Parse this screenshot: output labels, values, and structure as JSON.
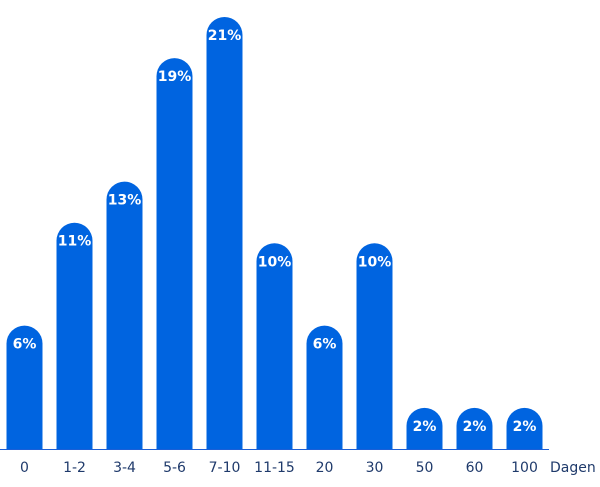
{
  "chart_data": {
    "type": "bar",
    "categories": [
      "0",
      "1-2",
      "3-4",
      "5-6",
      "7-10",
      "11-15",
      "20",
      "30",
      "50",
      "60",
      "100"
    ],
    "values": [
      6,
      11,
      13,
      19,
      21,
      10,
      6,
      10,
      2,
      2,
      2
    ],
    "value_labels": [
      "6%",
      "11%",
      "13%",
      "19%",
      "21%",
      "10%",
      "6%",
      "10%",
      "2%",
      "2%",
      "2%"
    ],
    "xlabel": "Dagen",
    "ylabel": "",
    "ylim": [
      0,
      21
    ],
    "grid": false,
    "bar_color": "#0064E0",
    "label_color": "#FFFFFF",
    "tick_color": "#1F3A6B"
  }
}
